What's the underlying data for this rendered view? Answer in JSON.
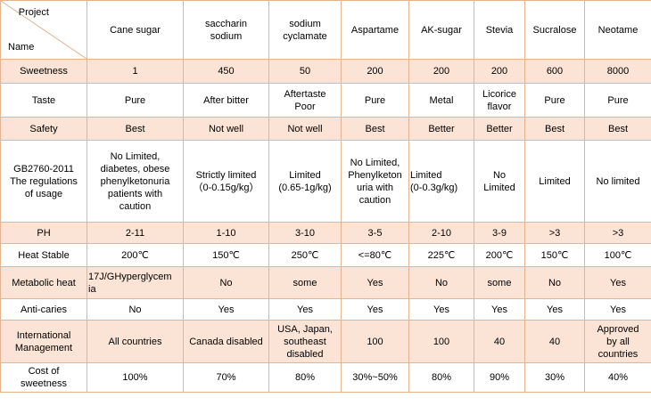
{
  "corner": {
    "top": "Project",
    "bottom": "Name"
  },
  "headers": [
    "Cane sugar",
    [
      "saccharin",
      "sodium"
    ],
    [
      "sodium",
      "cyclamate"
    ],
    "Aspartame",
    "AK-sugar",
    "Stevia",
    "Sucralose",
    "Neotame"
  ],
  "rows": [
    {
      "label": [
        "Sweetness"
      ],
      "cells": [
        [
          "1"
        ],
        [
          "450"
        ],
        [
          "50"
        ],
        [
          "200"
        ],
        [
          "200"
        ],
        [
          "200"
        ],
        [
          "600"
        ],
        [
          "8000"
        ]
      ]
    },
    {
      "label": [
        "Taste"
      ],
      "cells": [
        [
          "Pure"
        ],
        [
          "After bitter"
        ],
        [
          "Aftertaste",
          "Poor"
        ],
        [
          "Pure"
        ],
        [
          "Metal"
        ],
        [
          "Licorice",
          "flavor"
        ],
        [
          "Pure"
        ],
        [
          "Pure"
        ]
      ]
    },
    {
      "label": [
        "Safety"
      ],
      "cells": [
        [
          "Best"
        ],
        [
          "Not well"
        ],
        [
          "Not well"
        ],
        [
          "Best"
        ],
        [
          "Better"
        ],
        [
          "Better"
        ],
        [
          "Best"
        ],
        [
          "Best"
        ]
      ]
    },
    {
      "label": [
        "GB2760-2011",
        "The regulations",
        "of usage"
      ],
      "cells": [
        [
          "No Limited,",
          "diabetes, obese",
          "phenylketonuria",
          "patients with",
          "caution"
        ],
        [
          "Strictly limited",
          "（0-0.15g/kg）"
        ],
        [
          "Limited",
          "(0.65-1g/kg)"
        ],
        [
          "No Limited,",
          "Phenylketon",
          "uria with",
          "caution"
        ],
        [
          "Limited",
          "(0-0.3g/kg)"
        ],
        [
          "No",
          "Limited"
        ],
        [
          "Limited"
        ],
        [
          "No limited"
        ]
      ]
    },
    {
      "label": [
        "PH"
      ],
      "cells": [
        [
          "2-11"
        ],
        [
          "1-10"
        ],
        [
          "3-10"
        ],
        [
          "3-5"
        ],
        [
          "2-10"
        ],
        [
          "3-9"
        ],
        [
          ">3"
        ],
        [
          ">3"
        ]
      ]
    },
    {
      "label": [
        "Heat Stable"
      ],
      "cells": [
        [
          "200℃"
        ],
        [
          "150℃"
        ],
        [
          "250℃"
        ],
        [
          "<=80℃"
        ],
        [
          "225℃"
        ],
        [
          "200℃"
        ],
        [
          "150℃"
        ],
        [
          "100℃"
        ]
      ]
    },
    {
      "label": [
        "Metabolic heat"
      ],
      "cells": [
        [
          "17J/GHyperglycem",
          "ia"
        ],
        [
          "No"
        ],
        [
          "some"
        ],
        [
          "Yes"
        ],
        [
          "No"
        ],
        [
          "some"
        ],
        [
          "No"
        ],
        [
          "Yes"
        ]
      ]
    },
    {
      "label": [
        "Anti-caries"
      ],
      "cells": [
        [
          "No"
        ],
        [
          "Yes"
        ],
        [
          "Yes"
        ],
        [
          "Yes"
        ],
        [
          "Yes"
        ],
        [
          "Yes"
        ],
        [
          "Yes"
        ],
        [
          "Yes"
        ]
      ]
    },
    {
      "label": [
        "International",
        "Management"
      ],
      "cells": [
        [
          "All countries"
        ],
        [
          "Canada disabled"
        ],
        [
          "USA, Japan,",
          "southeast",
          "disabled"
        ],
        [
          "100"
        ],
        [
          "100"
        ],
        [
          "40"
        ],
        [
          "40"
        ],
        [
          "Approved",
          "by all",
          "countries"
        ]
      ]
    },
    {
      "label": [
        "Cost of",
        "sweetness"
      ],
      "cells": [
        [
          "100%"
        ],
        [
          "70%"
        ],
        [
          "80%"
        ],
        [
          "30%~50%"
        ],
        [
          "80%"
        ],
        [
          "90%"
        ],
        [
          "30%"
        ],
        [
          "40%"
        ]
      ]
    }
  ],
  "colors": {
    "border": "#e3b48f",
    "shade": "#fbe4d5"
  }
}
